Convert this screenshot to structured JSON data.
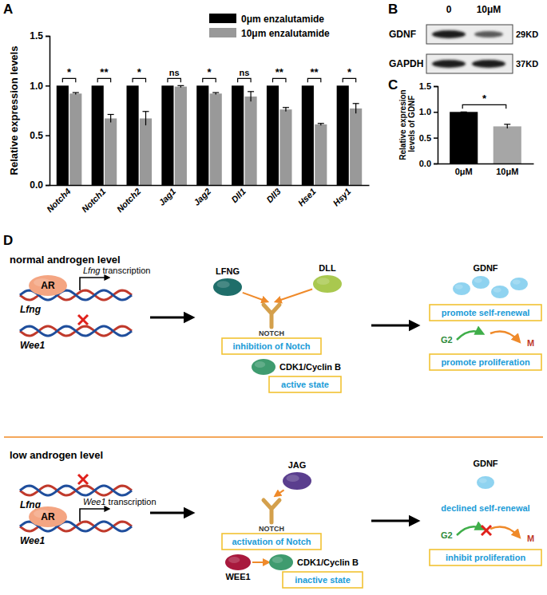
{
  "chart_data": [
    {
      "type": "bar",
      "panel_label": "A",
      "y_label": "Relative expression levels",
      "categories": [
        "Notch4",
        "Notch1",
        "Notch2",
        "Jag1",
        "Jag2",
        "Dll1",
        "Dll3",
        "Hse1",
        "Hsy1"
      ],
      "series": [
        {
          "name": "0μm enzalutamide",
          "color": "#000000",
          "values": [
            1,
            1,
            1,
            1,
            1,
            1,
            1,
            1,
            1
          ]
        },
        {
          "name": "10μm enzalutamide",
          "color": "#999999",
          "values": [
            0.92,
            0.67,
            0.67,
            0.99,
            0.92,
            0.89,
            0.76,
            0.61,
            0.77
          ],
          "errors": [
            0.01,
            0.04,
            0.07,
            0.01,
            0.01,
            0.05,
            0.02,
            0.01,
            0.05
          ]
        }
      ],
      "significance": [
        "*",
        "**",
        "*",
        "ns",
        "*",
        "ns",
        "**",
        "**",
        "*"
      ],
      "ylim": [
        0,
        1.5
      ],
      "yticks": [
        {
          "value": 0,
          "label": "0.0"
        },
        {
          "value": 0.5,
          "label": "0.5"
        },
        {
          "value": 1,
          "label": "1.0"
        },
        {
          "value": 1.5,
          "label": "1.5"
        }
      ],
      "legend": "top-right"
    },
    {
      "type": "bar",
      "panel_label": "C",
      "y_label": "Relative expresion levels of GDNF",
      "categories": [
        "0μM",
        "10μM"
      ],
      "values": [
        1,
        0.72
      ],
      "errors": [
        0,
        0.04
      ],
      "colors": [
        "#000000",
        "#a6a6a6"
      ],
      "significance": [
        "*"
      ],
      "ylim": [
        0,
        1.5
      ],
      "yticks": [
        {
          "value": 0,
          "label": "0.0"
        },
        {
          "value": 0.5,
          "label": "0.5"
        },
        {
          "value": 1,
          "label": "1.0"
        },
        {
          "value": 1.5,
          "label": "1.5"
        }
      ]
    }
  ],
  "blot": {
    "panel_label": "B",
    "lanes": [
      "0",
      "10μM"
    ],
    "rows": [
      {
        "protein": "GDNF",
        "size": "29KD"
      },
      {
        "protein": "GAPDH",
        "size": "37KD"
      }
    ]
  },
  "diagram": {
    "panel_label": "D",
    "sections": [
      {
        "title": "normal androgen level",
        "receptor": "AR",
        "genes": [
          "Lfng",
          "Wee1"
        ],
        "transcription": "Lfng transcription",
        "ligands": [
          "LFNG",
          "DLL"
        ],
        "receptor_notch": "NOTCH",
        "notch_state": "inhibition of Notch",
        "kinase": "CDK1/Cyclin B",
        "kinase_state": "active state",
        "factor": "GDNF",
        "self_renewal": "promote self-renewal",
        "phases": [
          "G2",
          "M"
        ],
        "proliferation": "promote proliferation"
      },
      {
        "title": "low androgen level",
        "receptor": "AR",
        "genes": [
          "Lfng",
          "Wee1"
        ],
        "transcription": "Wee1 transcription",
        "ligands": [
          "JAG"
        ],
        "receptor_notch": "NOTCH",
        "notch_state": "activation of Notch",
        "inhibitor": "WEE1",
        "kinase": "CDK1/Cyclin B",
        "kinase_state": "inactive state",
        "factor": "GDNF",
        "self_renewal": "declined self-renewal",
        "phases": [
          "G2",
          "M"
        ],
        "proliferation": "inhibit proliferation"
      }
    ]
  }
}
